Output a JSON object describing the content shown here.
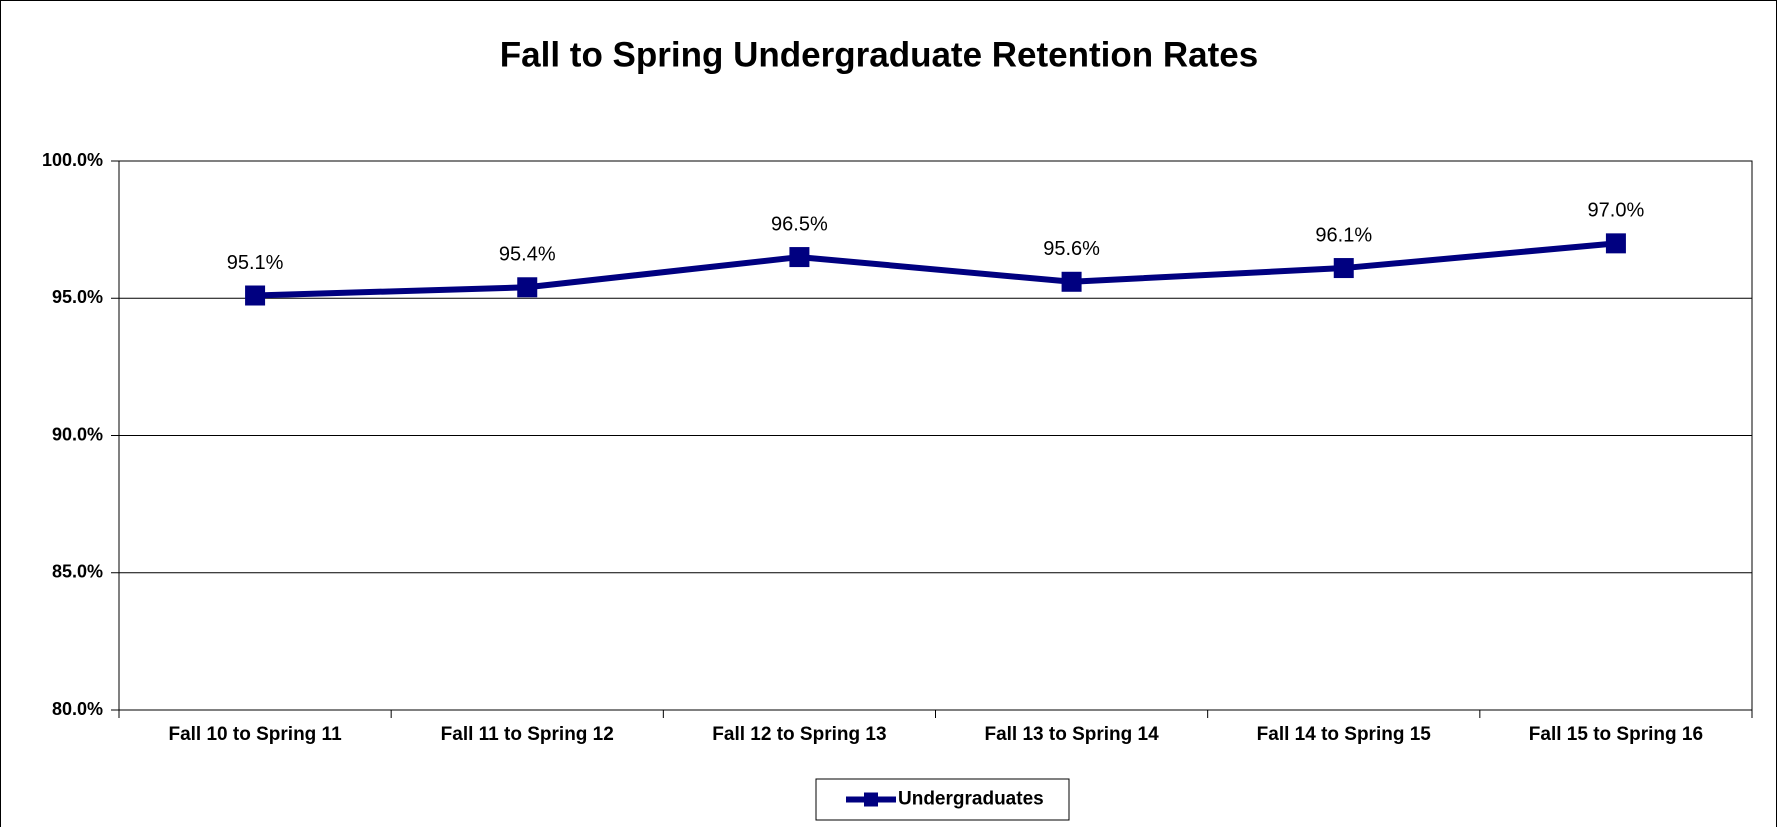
{
  "chart_data": {
    "type": "line",
    "title": "Fall to Spring Undergraduate Retention Rates",
    "categories": [
      "Fall 10 to Spring 11",
      "Fall 11 to Spring 12",
      "Fall 12 to Spring 13",
      "Fall 13 to Spring 14",
      "Fall 14 to Spring 15",
      "Fall 15 to Spring 16"
    ],
    "series": [
      {
        "name": "Undergraduates",
        "color": "#000080",
        "values": [
          95.1,
          95.4,
          96.5,
          95.6,
          96.1,
          97.0
        ],
        "value_labels": [
          "95.1%",
          "95.4%",
          "96.5%",
          "95.6%",
          "96.1%",
          "97.0%"
        ]
      }
    ],
    "ylim": [
      80,
      100
    ],
    "yticks": [
      {
        "value": 80,
        "label": "80.0%"
      },
      {
        "value": 85,
        "label": "85.0%"
      },
      {
        "value": 90,
        "label": "90.0%"
      },
      {
        "value": 95,
        "label": "95.0%"
      },
      {
        "value": 100,
        "label": "100.0%"
      }
    ],
    "grid": true,
    "legend": "bottom"
  }
}
